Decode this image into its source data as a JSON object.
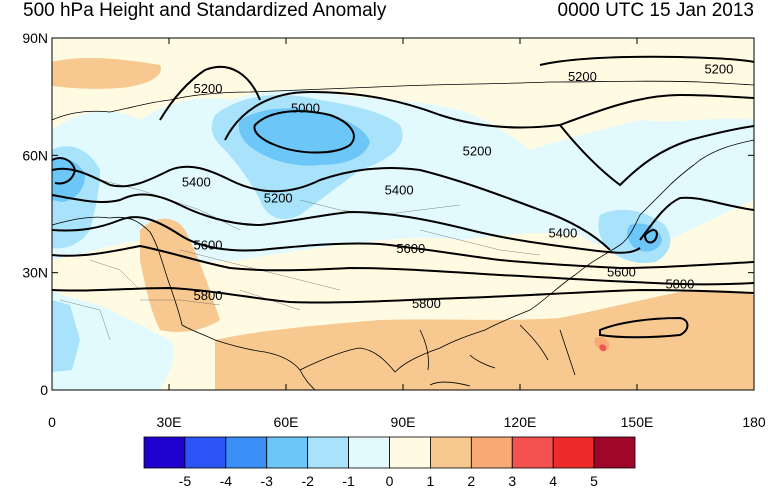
{
  "header": {
    "title": "500 hPa Height and Standardized Anomaly",
    "time": "0000 UTC 15 Jan 2013"
  },
  "map": {
    "lon_range": [
      0,
      180
    ],
    "lat_range": [
      0,
      90
    ],
    "lat_ticks": [
      {
        "lat": 90,
        "label": "90N"
      },
      {
        "lat": 60,
        "label": "60N"
      },
      {
        "lat": 30,
        "label": "30N"
      },
      {
        "lat": 0,
        "label": "0"
      }
    ],
    "lon_ticks": [
      {
        "lon": 0,
        "label": "0"
      },
      {
        "lon": 30,
        "label": "30E"
      },
      {
        "lon": 60,
        "label": "60E"
      },
      {
        "lon": 90,
        "label": "90E"
      },
      {
        "lon": 120,
        "label": "120E"
      },
      {
        "lon": 150,
        "label": "150E"
      },
      {
        "lon": 180,
        "label": "180"
      }
    ],
    "contour_labels": [
      {
        "text": "5200",
        "lon": 40,
        "lat": 77
      },
      {
        "text": "5000",
        "lon": 65,
        "lat": 72
      },
      {
        "text": "5200",
        "lon": 58,
        "lat": 49
      },
      {
        "text": "5400",
        "lon": 37,
        "lat": 53
      },
      {
        "text": "5400",
        "lon": 89,
        "lat": 51
      },
      {
        "text": "5200",
        "lon": 109,
        "lat": 61
      },
      {
        "text": "5200",
        "lon": 136,
        "lat": 80
      },
      {
        "text": "5200",
        "lon": 171,
        "lat": 82
      },
      {
        "text": "5600",
        "lon": 40,
        "lat": 37
      },
      {
        "text": "5600",
        "lon": 92,
        "lat": 36
      },
      {
        "text": "5400",
        "lon": 131,
        "lat": 40
      },
      {
        "text": "5600",
        "lon": 146,
        "lat": 30
      },
      {
        "text": "5800",
        "lon": 40,
        "lat": 24
      },
      {
        "text": "5800",
        "lon": 96,
        "lat": 22
      },
      {
        "text": "5800",
        "lon": 161,
        "lat": 27
      }
    ]
  },
  "colorbar": {
    "labels": [
      "-5",
      "-4",
      "-3",
      "-2",
      "-1",
      "0",
      "1",
      "2",
      "3",
      "4",
      "5"
    ],
    "colors": [
      "#1f00cc",
      "#2b55f5",
      "#3a8ef5",
      "#6cc6f7",
      "#a8e3fb",
      "#e2f9fd",
      "#fffbe3",
      "#f7c88f",
      "#f8a974",
      "#f45151",
      "#ee2b2b",
      "#a0062a"
    ]
  }
}
